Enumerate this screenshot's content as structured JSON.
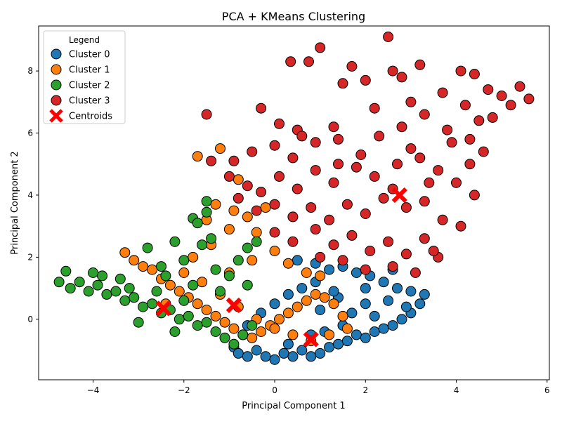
{
  "chart_data": {
    "type": "scatter",
    "title": "PCA + KMeans Clustering",
    "xlabel": "Principal Component 1",
    "ylabel": "Principal Component 2",
    "xlim": [
      -5.2,
      6.05
    ],
    "ylim": [
      -1.95,
      9.45
    ],
    "xticks": [
      -4,
      -2,
      0,
      2,
      4,
      6
    ],
    "yticks": [
      0,
      2,
      4,
      6,
      8
    ],
    "grid": false,
    "legend": {
      "title": "Legend",
      "placement": "top-left",
      "entries": [
        "Cluster 0",
        "Cluster 1",
        "Cluster 2",
        "Cluster 3",
        "Centroids"
      ]
    },
    "series": [
      {
        "name": "Cluster 0",
        "color": "#1f77b4",
        "points": [
          [
            -0.9,
            -0.9
          ],
          [
            -0.8,
            -1.1
          ],
          [
            -0.6,
            -1.2
          ],
          [
            -0.4,
            -1.0
          ],
          [
            -0.2,
            -1.2
          ],
          [
            0.0,
            -1.3
          ],
          [
            0.2,
            -1.1
          ],
          [
            0.4,
            -1.2
          ],
          [
            0.6,
            -1.0
          ],
          [
            0.8,
            -1.2
          ],
          [
            1.0,
            -1.1
          ],
          [
            1.2,
            -0.9
          ],
          [
            1.4,
            -0.8
          ],
          [
            1.6,
            -0.7
          ],
          [
            1.8,
            -0.5
          ],
          [
            2.0,
            -0.6
          ],
          [
            2.2,
            -0.4
          ],
          [
            2.4,
            -0.3
          ],
          [
            2.6,
            -0.2
          ],
          [
            2.8,
            0.0
          ],
          [
            3.0,
            0.2
          ],
          [
            3.2,
            0.5
          ],
          [
            3.3,
            0.8
          ],
          [
            3.0,
            0.9
          ],
          [
            2.7,
            1.0
          ],
          [
            2.4,
            1.2
          ],
          [
            2.1,
            1.4
          ],
          [
            1.8,
            1.5
          ],
          [
            1.5,
            1.7
          ],
          [
            1.2,
            1.6
          ],
          [
            0.9,
            1.2
          ],
          [
            0.6,
            1.0
          ],
          [
            0.3,
            0.8
          ],
          [
            0.0,
            0.5
          ],
          [
            -0.3,
            0.2
          ],
          [
            -0.6,
            -0.2
          ],
          [
            0.5,
            1.9
          ],
          [
            0.9,
            1.8
          ],
          [
            1.4,
            0.7
          ],
          [
            2.0,
            0.5
          ],
          [
            2.5,
            0.6
          ],
          [
            1.0,
            0.3
          ],
          [
            1.5,
            -0.2
          ],
          [
            2.2,
            0.1
          ],
          [
            0.8,
            -0.5
          ],
          [
            1.7,
            0.2
          ],
          [
            2.9,
            0.4
          ],
          [
            0.3,
            -0.8
          ],
          [
            1.1,
            -0.4
          ],
          [
            2.6,
            1.6
          ],
          [
            2.0,
            1.0
          ],
          [
            1.3,
            0.9
          ]
        ]
      },
      {
        "name": "Cluster 1",
        "color": "#ff7f0e",
        "points": [
          [
            -3.3,
            2.15
          ],
          [
            -3.1,
            1.9
          ],
          [
            -2.9,
            1.7
          ],
          [
            -2.7,
            1.6
          ],
          [
            -2.5,
            1.3
          ],
          [
            -2.3,
            1.1
          ],
          [
            -2.1,
            0.9
          ],
          [
            -1.9,
            0.7
          ],
          [
            -1.7,
            0.5
          ],
          [
            -1.5,
            0.3
          ],
          [
            -1.3,
            0.1
          ],
          [
            -1.1,
            -0.1
          ],
          [
            -0.9,
            -0.3
          ],
          [
            -0.7,
            -0.5
          ],
          [
            -0.5,
            -0.6
          ],
          [
            -0.3,
            -0.4
          ],
          [
            -0.1,
            -0.2
          ],
          [
            0.1,
            0.0
          ],
          [
            0.3,
            0.2
          ],
          [
            0.5,
            0.4
          ],
          [
            0.7,
            0.6
          ],
          [
            0.9,
            0.8
          ],
          [
            1.1,
            0.7
          ],
          [
            1.3,
            0.5
          ],
          [
            1.5,
            0.1
          ],
          [
            1.6,
            -0.3
          ],
          [
            1.2,
            -0.5
          ],
          [
            0.8,
            -0.7
          ],
          [
            0.4,
            -0.5
          ],
          [
            0.0,
            -0.3
          ],
          [
            -0.4,
            0.0
          ],
          [
            -0.8,
            0.4
          ],
          [
            -1.2,
            0.8
          ],
          [
            -1.6,
            1.2
          ],
          [
            -2.0,
            1.5
          ],
          [
            -1.8,
            2.0
          ],
          [
            -1.4,
            2.4
          ],
          [
            -1.0,
            2.9
          ],
          [
            -0.6,
            3.3
          ],
          [
            -0.2,
            3.6
          ],
          [
            -1.7,
            5.25
          ],
          [
            -1.2,
            5.5
          ],
          [
            -0.8,
            4.5
          ],
          [
            -0.4,
            2.8
          ],
          [
            0.0,
            2.2
          ],
          [
            0.3,
            1.8
          ],
          [
            0.7,
            1.5
          ],
          [
            -1.0,
            1.5
          ],
          [
            -0.5,
            1.9
          ],
          [
            -1.3,
            3.7
          ],
          [
            -1.5,
            3.2
          ],
          [
            1.0,
            1.4
          ],
          [
            -2.4,
            0.5
          ],
          [
            -0.9,
            3.5
          ]
        ]
      },
      {
        "name": "Cluster 2",
        "color": "#2ca02c",
        "points": [
          [
            -4.75,
            1.2
          ],
          [
            -4.6,
            1.55
          ],
          [
            -4.5,
            1.0
          ],
          [
            -4.3,
            1.2
          ],
          [
            -4.1,
            0.9
          ],
          [
            -3.9,
            1.1
          ],
          [
            -3.7,
            0.8
          ],
          [
            -3.5,
            0.9
          ],
          [
            -3.3,
            0.6
          ],
          [
            -3.1,
            0.7
          ],
          [
            -2.9,
            0.4
          ],
          [
            -2.7,
            0.5
          ],
          [
            -2.5,
            0.2
          ],
          [
            -2.3,
            0.3
          ],
          [
            -2.1,
            0.0
          ],
          [
            -1.9,
            0.1
          ],
          [
            -1.7,
            -0.2
          ],
          [
            -1.5,
            -0.1
          ],
          [
            -1.3,
            -0.4
          ],
          [
            -1.1,
            -0.6
          ],
          [
            -0.9,
            -0.8
          ],
          [
            -0.7,
            -0.5
          ],
          [
            -0.5,
            -0.2
          ],
          [
            -3.0,
            -0.1
          ],
          [
            -2.8,
            2.3
          ],
          [
            -2.5,
            1.7
          ],
          [
            -2.2,
            2.5
          ],
          [
            -2.0,
            1.9
          ],
          [
            -1.8,
            3.25
          ],
          [
            -1.7,
            3.1
          ],
          [
            -1.5,
            3.8
          ],
          [
            -1.5,
            3.45
          ],
          [
            -1.4,
            2.6
          ],
          [
            -1.6,
            2.4
          ],
          [
            -1.3,
            1.6
          ],
          [
            -1.0,
            1.4
          ],
          [
            -0.8,
            1.9
          ],
          [
            -0.6,
            2.3
          ],
          [
            -0.4,
            2.5
          ],
          [
            -0.6,
            1.1
          ],
          [
            -2.6,
            0.9
          ],
          [
            -2.4,
            1.4
          ],
          [
            -3.4,
            1.3
          ],
          [
            -3.8,
            1.4
          ],
          [
            -2.0,
            0.6
          ],
          [
            -1.8,
            1.1
          ],
          [
            -1.2,
            0.9
          ],
          [
            -4.0,
            1.5
          ],
          [
            -3.2,
            1.0
          ],
          [
            -2.2,
            -0.4
          ]
        ]
      },
      {
        "name": "Cluster 3",
        "color": "#d62728",
        "points": [
          [
            2.5,
            9.1
          ],
          [
            1.0,
            8.75
          ],
          [
            0.35,
            8.3
          ],
          [
            0.75,
            8.3
          ],
          [
            1.7,
            8.15
          ],
          [
            2.6,
            8.0
          ],
          [
            3.2,
            8.2
          ],
          [
            2.8,
            7.8
          ],
          [
            1.5,
            7.6
          ],
          [
            2.0,
            7.7
          ],
          [
            4.1,
            8.0
          ],
          [
            4.4,
            7.9
          ],
          [
            5.4,
            7.5
          ],
          [
            5.6,
            7.1
          ],
          [
            5.0,
            7.2
          ],
          [
            4.7,
            7.4
          ],
          [
            -1.5,
            6.6
          ],
          [
            -0.3,
            6.8
          ],
          [
            0.1,
            6.3
          ],
          [
            0.5,
            6.1
          ],
          [
            1.3,
            6.2
          ],
          [
            2.2,
            6.8
          ],
          [
            3.0,
            7.0
          ],
          [
            3.7,
            7.3
          ],
          [
            4.2,
            6.9
          ],
          [
            4.8,
            6.5
          ],
          [
            -1.4,
            5.1
          ],
          [
            -0.9,
            5.1
          ],
          [
            -0.5,
            5.4
          ],
          [
            0.0,
            5.6
          ],
          [
            0.4,
            5.2
          ],
          [
            0.9,
            5.7
          ],
          [
            1.4,
            5.8
          ],
          [
            1.9,
            5.3
          ],
          [
            2.3,
            5.9
          ],
          [
            2.8,
            6.2
          ],
          [
            3.3,
            6.6
          ],
          [
            3.8,
            6.1
          ],
          [
            4.3,
            5.8
          ],
          [
            4.6,
            5.4
          ],
          [
            -1.0,
            4.6
          ],
          [
            -0.6,
            4.3
          ],
          [
            -0.3,
            4.1
          ],
          [
            0.1,
            4.6
          ],
          [
            0.5,
            4.2
          ],
          [
            0.9,
            4.8
          ],
          [
            1.3,
            4.4
          ],
          [
            1.8,
            4.9
          ],
          [
            2.2,
            4.6
          ],
          [
            2.7,
            5.0
          ],
          [
            3.2,
            5.2
          ],
          [
            3.6,
            4.8
          ],
          [
            4.0,
            4.4
          ],
          [
            4.4,
            4.0
          ],
          [
            -0.8,
            3.9
          ],
          [
            -0.4,
            3.5
          ],
          [
            0.0,
            3.7
          ],
          [
            0.4,
            3.3
          ],
          [
            0.8,
            3.6
          ],
          [
            1.2,
            3.2
          ],
          [
            1.6,
            3.7
          ],
          [
            2.0,
            3.4
          ],
          [
            2.4,
            3.9
          ],
          [
            2.9,
            3.6
          ],
          [
            3.3,
            3.8
          ],
          [
            3.7,
            3.2
          ],
          [
            4.1,
            3.0
          ],
          [
            0.0,
            2.8
          ],
          [
            0.4,
            2.5
          ],
          [
            0.9,
            2.9
          ],
          [
            1.3,
            2.4
          ],
          [
            1.7,
            2.7
          ],
          [
            2.1,
            2.2
          ],
          [
            2.5,
            2.5
          ],
          [
            2.9,
            2.1
          ],
          [
            3.3,
            2.6
          ],
          [
            3.6,
            2.0
          ],
          [
            1.0,
            2.0
          ],
          [
            1.5,
            1.9
          ],
          [
            2.0,
            1.6
          ],
          [
            2.6,
            1.7
          ],
          [
            3.1,
            1.5
          ],
          [
            3.5,
            2.2
          ],
          [
            4.3,
            5.0
          ],
          [
            3.9,
            5.7
          ],
          [
            3.4,
            4.4
          ],
          [
            2.6,
            4.2
          ],
          [
            1.4,
            5.0
          ],
          [
            0.6,
            5.9
          ],
          [
            4.5,
            6.4
          ],
          [
            5.2,
            6.9
          ],
          [
            3.0,
            5.5
          ]
        ]
      }
    ],
    "centroids": {
      "name": "Centroids",
      "color": "#ff0000",
      "points": [
        [
          -2.45,
          0.35
        ],
        [
          -0.9,
          0.45
        ],
        [
          0.8,
          -0.65
        ],
        [
          2.75,
          4.0
        ]
      ]
    }
  }
}
